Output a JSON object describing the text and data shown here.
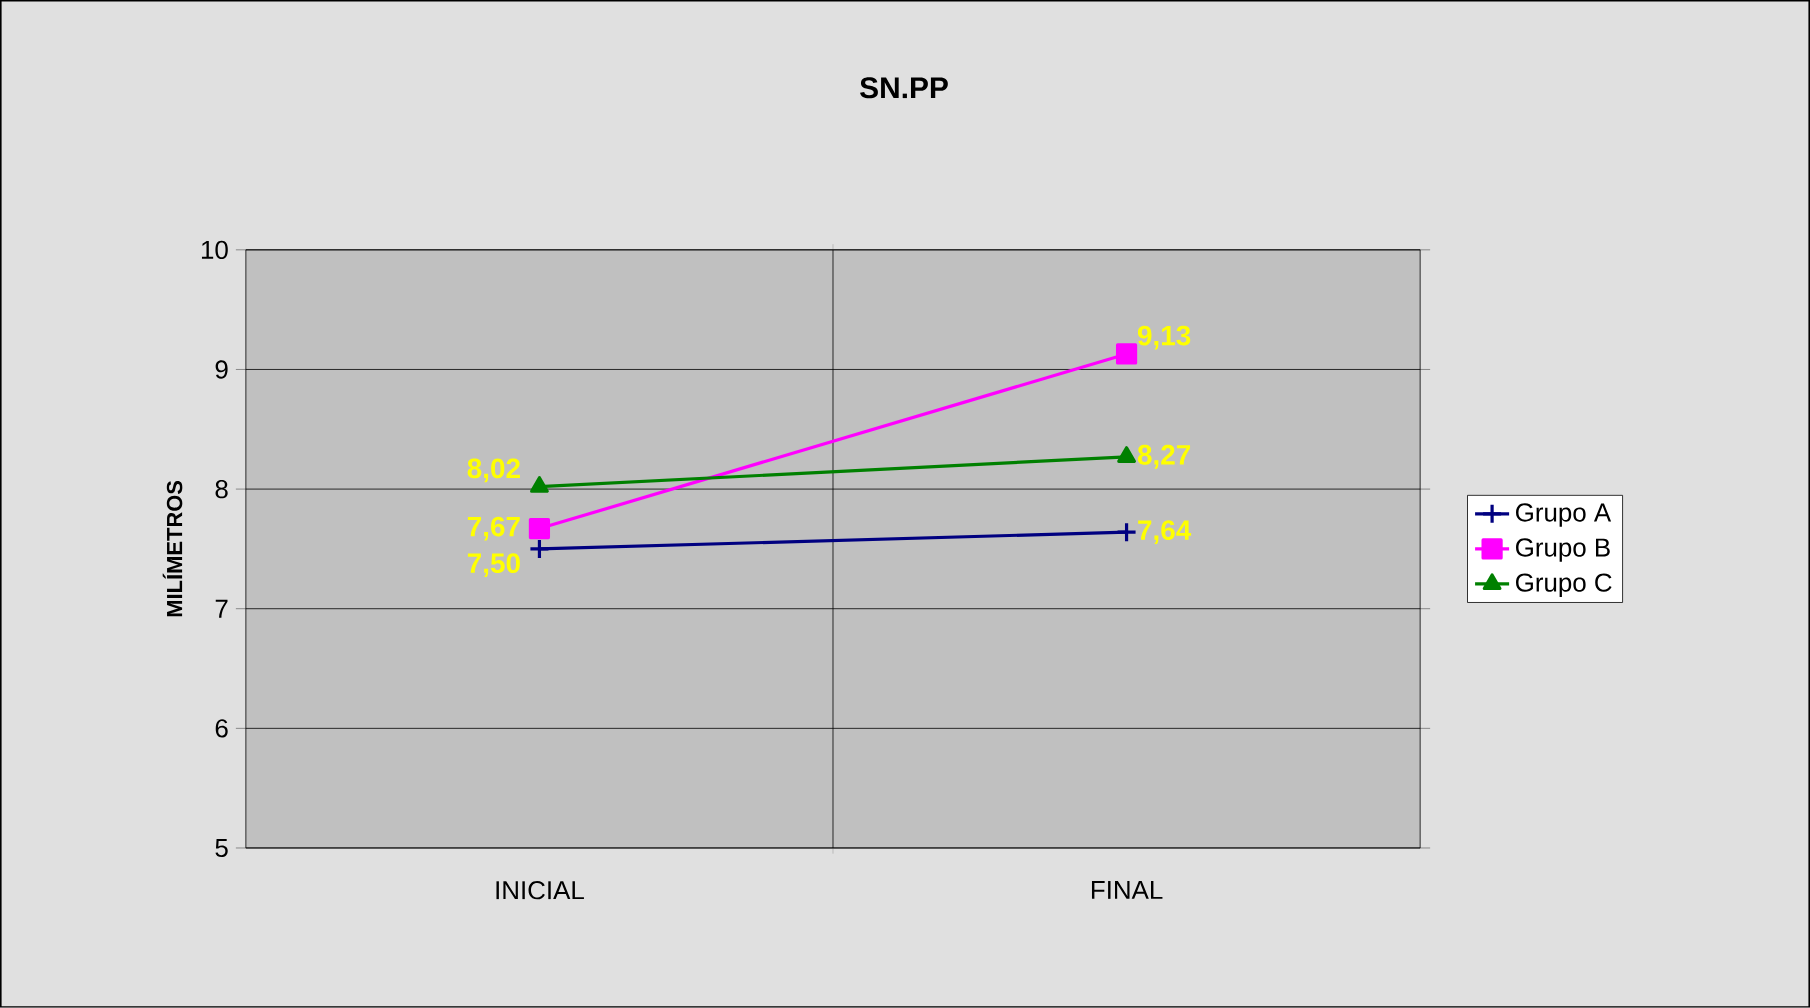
{
  "chart_data": {
    "type": "line",
    "title": "SN.PP",
    "ylabel": "MILÍMETROS",
    "categories": [
      "INICIAL",
      "FINAL"
    ],
    "series": [
      {
        "name": "Grupo A",
        "color": "#000080",
        "marker": "cross",
        "values": [
          7.5,
          7.64
        ],
        "value_labels": [
          "7,50",
          "7,64"
        ]
      },
      {
        "name": "Grupo B",
        "color": "#ff00ff",
        "marker": "square",
        "values": [
          7.67,
          9.13
        ],
        "value_labels": [
          "7,67",
          "9,13"
        ]
      },
      {
        "name": "Grupo C",
        "color": "#008000",
        "marker": "triangle",
        "values": [
          8.02,
          8.27
        ],
        "value_labels": [
          "8,02",
          "8,27"
        ]
      }
    ],
    "ylim": [
      5,
      10
    ],
    "yticks": [
      5,
      6,
      7,
      8,
      9,
      10
    ],
    "grid": true,
    "legend": "right"
  }
}
